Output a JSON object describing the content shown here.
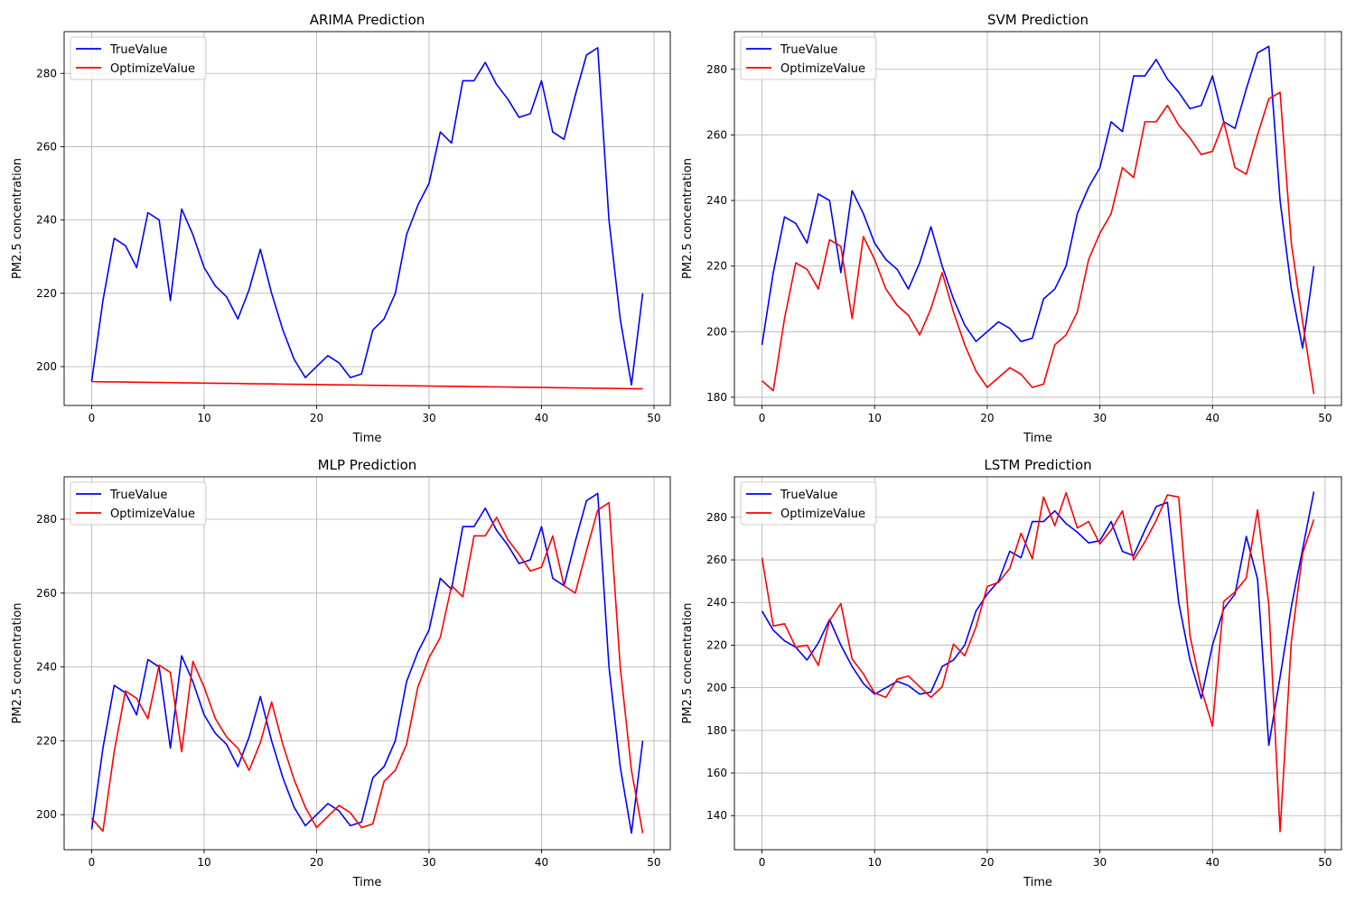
{
  "figure": {
    "xlabel": "Time",
    "ylabel": "PM2.5 concentration"
  },
  "colors": {
    "true": "#0000ff",
    "predicted": "#ff0000",
    "grid": "#b0b0b0"
  },
  "chart_data": [
    {
      "type": "line",
      "title": "ARIMA Prediction",
      "xlabel": "Time",
      "ylabel": "PM2.5 concentration",
      "xlim": [
        -2.45,
        51.45
      ],
      "ylim": [
        189.4,
        291.4
      ],
      "xticks": [
        0,
        10,
        20,
        30,
        40,
        50
      ],
      "yticks": [
        200,
        220,
        240,
        260,
        280
      ],
      "grid": true,
      "legend": "top-left",
      "series": [
        {
          "name": "TrueValue",
          "color": "#0000ff",
          "values": [
            196,
            218,
            235,
            233,
            227,
            242,
            240,
            218,
            243,
            236,
            227,
            222,
            219,
            213,
            221,
            232,
            220,
            210,
            202,
            197,
            200,
            203,
            201,
            197,
            198,
            210,
            213,
            220,
            236,
            244,
            250,
            264,
            261,
            278,
            278,
            283,
            277,
            273,
            268,
            269,
            278,
            264,
            262,
            274,
            285,
            287,
            240,
            213,
            195,
            220
          ]
        },
        {
          "name": "OptimizeValue",
          "color": "#ff0000",
          "values": [
            195.9,
            195.86,
            195.82,
            195.78,
            195.74,
            195.7,
            195.66,
            195.62,
            195.58,
            195.54,
            195.5,
            195.46,
            195.42,
            195.38,
            195.34,
            195.3,
            195.26,
            195.22,
            195.18,
            195.14,
            195.1,
            195.06,
            195.02,
            194.98,
            194.94,
            194.9,
            194.86,
            194.82,
            194.78,
            194.74,
            194.7,
            194.66,
            194.62,
            194.58,
            194.54,
            194.5,
            194.46,
            194.42,
            194.38,
            194.34,
            194.3,
            194.26,
            194.22,
            194.18,
            194.14,
            194.1,
            194.06,
            194.02,
            193.98,
            193.94
          ]
        }
      ]
    },
    {
      "type": "line",
      "title": "SVM Prediction",
      "xlabel": "Time",
      "ylabel": "PM2.5 concentration",
      "xlim": [
        -2.45,
        51.45
      ],
      "ylim": [
        177.5,
        291.5
      ],
      "xticks": [
        0,
        10,
        20,
        30,
        40,
        50
      ],
      "yticks": [
        180,
        200,
        220,
        240,
        260,
        280
      ],
      "grid": true,
      "legend": "top-left",
      "series": [
        {
          "name": "TrueValue",
          "color": "#0000ff",
          "values": [
            196,
            218,
            235,
            233,
            227,
            242,
            240,
            218,
            243,
            236,
            227,
            222,
            219,
            213,
            221,
            232,
            220,
            210,
            202,
            197,
            200,
            203,
            201,
            197,
            198,
            210,
            213,
            220,
            236,
            244,
            250,
            264,
            261,
            278,
            278,
            283,
            277,
            273,
            268,
            269,
            278,
            264,
            262,
            274,
            285,
            287,
            240,
            213,
            195,
            220
          ]
        },
        {
          "name": "OptimizeValue",
          "color": "#ff0000",
          "values": [
            185,
            182,
            204,
            221,
            219,
            213,
            228,
            226,
            204,
            229,
            222,
            213,
            208,
            205,
            199,
            207,
            218,
            206,
            196,
            188,
            183,
            186,
            189,
            187,
            183,
            184,
            196,
            199,
            206,
            222,
            230,
            236,
            250,
            247,
            264,
            264,
            269,
            263,
            259,
            254,
            255,
            264,
            250,
            248,
            260,
            271,
            273,
            227,
            203,
            181
          ]
        }
      ]
    },
    {
      "type": "line",
      "title": "MLP Prediction",
      "xlabel": "Time",
      "ylabel": "PM2.5 concentration",
      "xlim": [
        -2.45,
        51.45
      ],
      "ylim": [
        190.5,
        291.5
      ],
      "xticks": [
        0,
        10,
        20,
        30,
        40,
        50
      ],
      "yticks": [
        200,
        220,
        240,
        260,
        280
      ],
      "grid": true,
      "legend": "top-left",
      "series": [
        {
          "name": "TrueValue",
          "color": "#0000ff",
          "values": [
            196,
            218,
            235,
            233,
            227,
            242,
            240,
            218,
            243,
            236,
            227,
            222,
            219,
            213,
            221,
            232,
            220,
            210,
            202,
            197,
            200,
            203,
            201,
            197,
            198,
            210,
            213,
            220,
            236,
            244,
            250,
            264,
            261,
            278,
            278,
            283,
            277,
            273,
            268,
            269,
            278,
            264,
            262,
            274,
            285,
            287,
            240,
            213,
            195,
            220
          ]
        },
        {
          "name": "OptimizeValue",
          "color": "#ff0000",
          "values": [
            199,
            195.5,
            217,
            233.5,
            231.5,
            226,
            240.5,
            238.5,
            217,
            241.5,
            234.5,
            226,
            221,
            218,
            212,
            219.5,
            230.5,
            219,
            209.5,
            202,
            196.5,
            199.5,
            202.5,
            200.5,
            196.5,
            197.5,
            209,
            212,
            219,
            234.5,
            242.5,
            248,
            262,
            259,
            275.5,
            275.5,
            280.5,
            274.5,
            270.5,
            266,
            267,
            275.5,
            262,
            260,
            271.5,
            282.5,
            284.5,
            240,
            212,
            195
          ]
        }
      ]
    },
    {
      "type": "line",
      "title": "LSTM Prediction",
      "xlabel": "Time",
      "ylabel": "PM2.5 concentration",
      "xlim": [
        -2.45,
        51.45
      ],
      "ylim": [
        124,
        299
      ],
      "xticks": [
        0,
        10,
        20,
        30,
        40,
        50
      ],
      "yticks": [
        140,
        160,
        180,
        200,
        220,
        240,
        260,
        280
      ],
      "grid": true,
      "legend": "top-left",
      "series": [
        {
          "name": "TrueValue",
          "color": "#0000ff",
          "values": [
            236,
            227,
            222,
            219,
            213,
            221,
            232,
            220,
            210,
            202,
            197,
            200,
            203,
            201,
            197,
            198,
            210,
            213,
            220,
            236,
            244,
            250,
            264,
            261,
            278,
            278,
            283,
            277,
            273,
            268,
            269,
            278,
            264,
            262,
            274,
            285,
            287,
            240,
            213,
            195,
            220,
            237,
            244,
            271,
            251,
            173,
            205,
            238,
            265,
            292
          ]
        },
        {
          "name": "OptimizeValue",
          "color": "#ff0000",
          "values": [
            261,
            229,
            230,
            219,
            220,
            210.5,
            231.5,
            239.5,
            213.5,
            206.5,
            197.5,
            195.5,
            204,
            205.5,
            200.5,
            195.5,
            200.5,
            220.5,
            215,
            228.5,
            247.5,
            249.5,
            256,
            272.5,
            260.5,
            289.5,
            276,
            291.5,
            275,
            278,
            267.5,
            274,
            283,
            260,
            268.5,
            278.5,
            290.5,
            289.5,
            224.5,
            199.5,
            182,
            240.5,
            245,
            251.5,
            283.5,
            239,
            132.5,
            221.5,
            263,
            279
          ]
        }
      ]
    }
  ]
}
